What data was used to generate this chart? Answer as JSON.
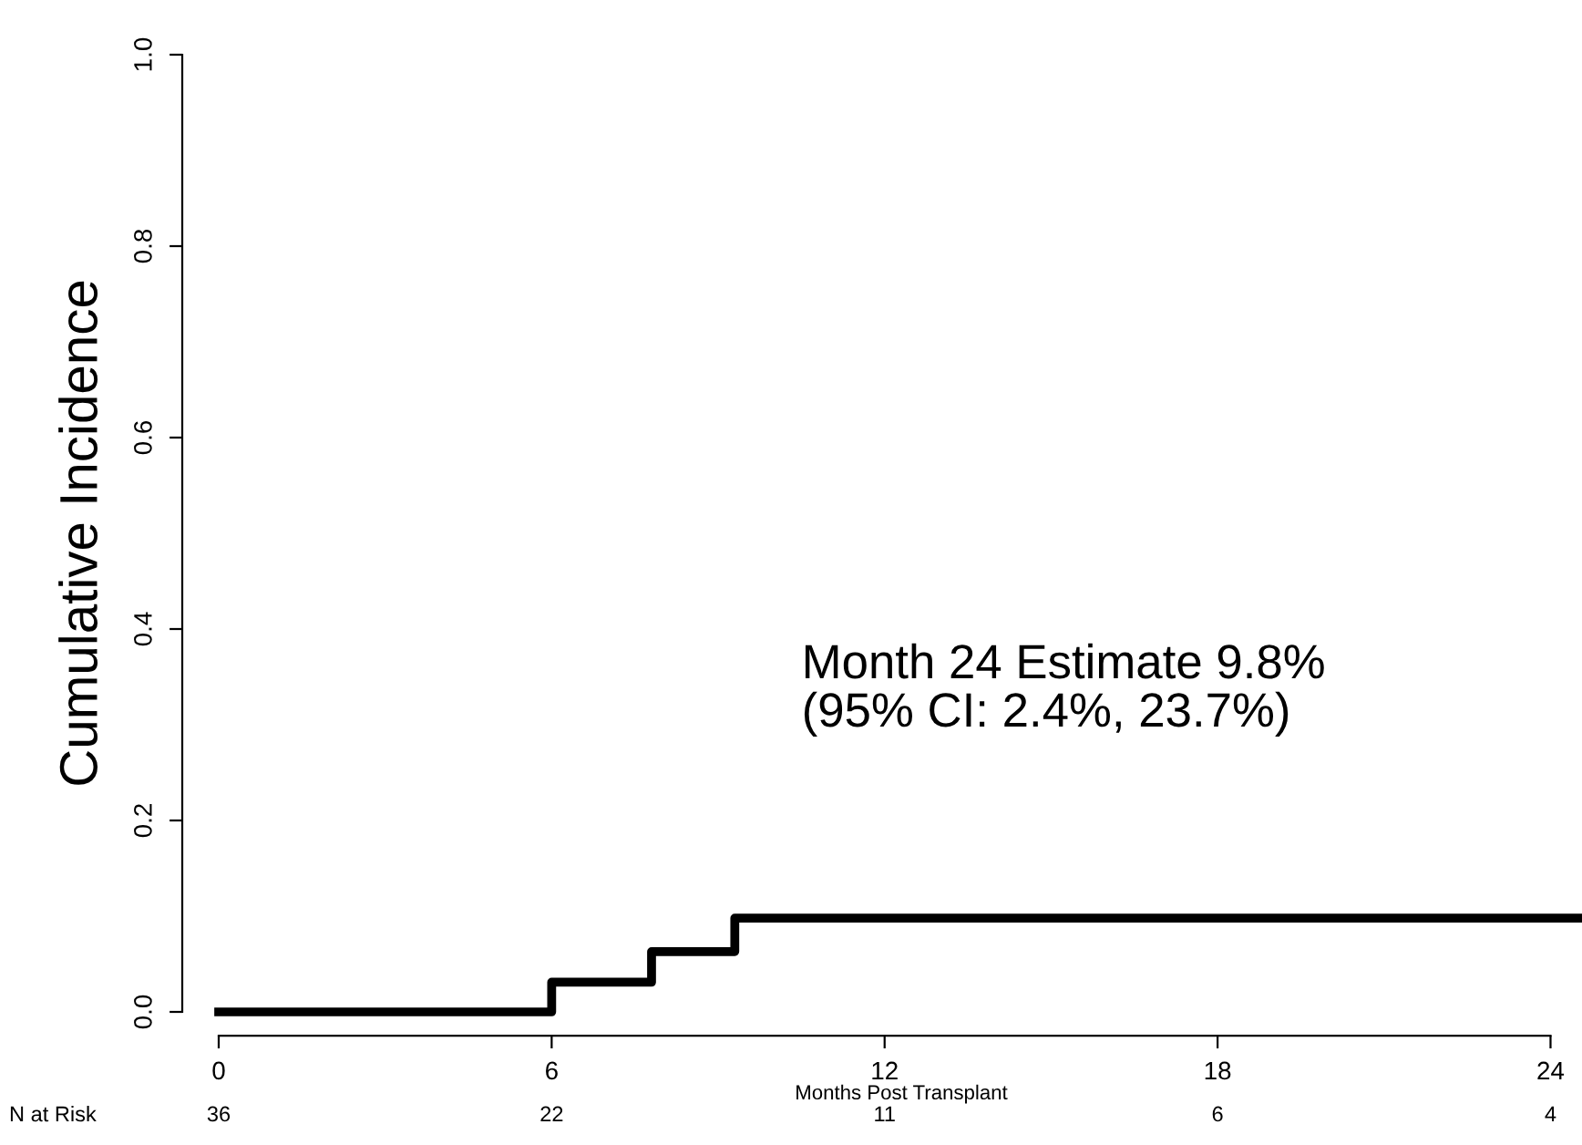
{
  "chart_data": {
    "type": "step",
    "ylabel": "Cumulative Incidence",
    "xlabel": "Months Post Transplant",
    "x": [
      0,
      6,
      7.8,
      9.3,
      24.6
    ],
    "series": [
      {
        "color": "#000000",
        "values": [
          0,
          0.031,
          0.063,
          0.098,
          0.098
        ]
      }
    ],
    "xlim": [
      0,
      24.6
    ],
    "ylim": [
      0,
      1
    ],
    "xticks": [
      0,
      6,
      12,
      18,
      24
    ],
    "yticks": [
      {
        "value": 0,
        "label": "0.0"
      },
      0.2,
      0.4,
      0.6,
      0.8,
      {
        "value": 1,
        "label": "1.0"
      }
    ],
    "grid": false,
    "legend": false,
    "line_style": "solid",
    "marker": "none",
    "annotations": [
      "Month 24 Estimate 9.8%\n(95% CI: 2.4%, 23.7%)",
      "N at Risk",
      "36",
      "22",
      "11",
      "6",
      "4"
    ]
  }
}
